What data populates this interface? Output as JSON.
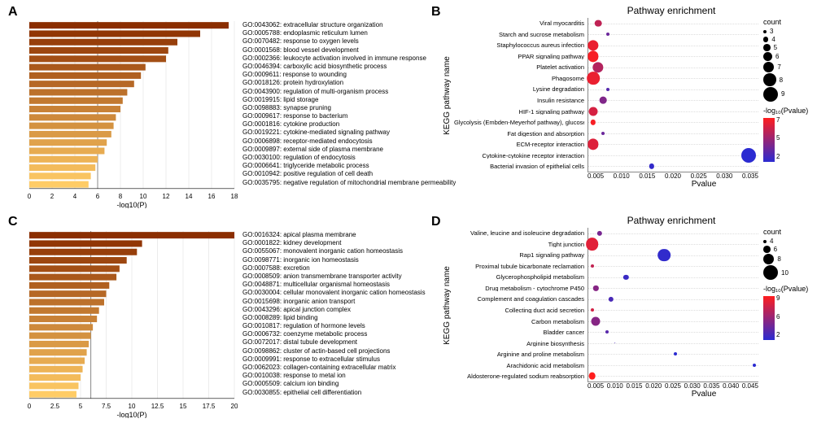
{
  "panelA": {
    "label": "A",
    "xaxis": {
      "label": "-log10(P)",
      "min": 0,
      "max": 18,
      "tick_step": 2
    },
    "bar_colors_gradient": {
      "start": "#8b2e00",
      "end": "#ffcc66"
    },
    "bars": [
      {
        "go": "GO:0043062",
        "term": "extracellular structure organization",
        "value": 17.5
      },
      {
        "go": "GO:0005788",
        "term": "endoplasmic reticulum lumen",
        "value": 15.0
      },
      {
        "go": "GO:0070482",
        "term": "response to oxygen levels",
        "value": 13.0
      },
      {
        "go": "GO:0001568",
        "term": "blood vessel development",
        "value": 12.2
      },
      {
        "go": "GO:0002366",
        "term": "leukocyte activation involved in immune response",
        "value": 12.0
      },
      {
        "go": "GO:0046394",
        "term": "carboxylic acid biosynthetic process",
        "value": 10.2
      },
      {
        "go": "GO:0009611",
        "term": "response to wounding",
        "value": 9.8
      },
      {
        "go": "GO:0018126",
        "term": "protein hydroxylation",
        "value": 9.2
      },
      {
        "go": "GO:0043900",
        "term": "regulation of multi-organism process",
        "value": 8.6
      },
      {
        "go": "GO:0019915",
        "term": "lipid storage",
        "value": 8.2
      },
      {
        "go": "GO:0098883",
        "term": "synapse pruning",
        "value": 8.0
      },
      {
        "go": "GO:0009617",
        "term": "response to bacterium",
        "value": 7.6
      },
      {
        "go": "GO:0001816",
        "term": "cytokine production",
        "value": 7.4
      },
      {
        "go": "GO:0019221",
        "term": "cytokine-mediated signaling pathway",
        "value": 7.2
      },
      {
        "go": "GO:0006898",
        "term": "receptor-mediated endocytosis",
        "value": 6.8
      },
      {
        "go": "GO:0009897",
        "term": "external side of plasma membrane",
        "value": 6.6
      },
      {
        "go": "GO:0030100",
        "term": "regulation of endocytosis",
        "value": 6.0
      },
      {
        "go": "GO:0006641",
        "term": "triglyceride metabolic process",
        "value": 5.8
      },
      {
        "go": "GO:0010942",
        "term": "positive regulation of cell death",
        "value": 5.4
      },
      {
        "go": "GO:0035795",
        "term": "negative regulation of mitochondrial membrane permeability",
        "value": 5.2
      }
    ]
  },
  "panelC": {
    "label": "C",
    "xaxis": {
      "label": "-log10(P)",
      "min": 0,
      "max": 20,
      "tick_step": 2.5
    },
    "bar_colors_gradient": {
      "start": "#8b2e00",
      "end": "#ffcc66"
    },
    "bars": [
      {
        "go": "GO:0016324",
        "term": "apical plasma membrane",
        "value": 20.0
      },
      {
        "go": "GO:0001822",
        "term": "kidney development",
        "value": 11.0
      },
      {
        "go": "GO:0055067",
        "term": "monovalent inorganic cation homeostasis",
        "value": 10.5
      },
      {
        "go": "GO:0098771",
        "term": "inorganic ion homeostasis",
        "value": 9.5
      },
      {
        "go": "GO:0007588",
        "term": "excretion",
        "value": 8.8
      },
      {
        "go": "GO:0008509",
        "term": "anion transmembrane transporter activity",
        "value": 8.5
      },
      {
        "go": "GO:0048871",
        "term": "multicellular organismal homeostasis",
        "value": 7.8
      },
      {
        "go": "GO:0030004",
        "term": "cellular monovalent inorganic cation homeostasis",
        "value": 7.5
      },
      {
        "go": "GO:0015698",
        "term": "inorganic anion transport",
        "value": 7.3
      },
      {
        "go": "GO:0043296",
        "term": "apical junction complex",
        "value": 6.8
      },
      {
        "go": "GO:0008289",
        "term": "lipid binding",
        "value": 6.6
      },
      {
        "go": "GO:0010817",
        "term": "regulation of hormone levels",
        "value": 6.2
      },
      {
        "go": "GO:0006732",
        "term": "coenzyme metabolic process",
        "value": 6.0
      },
      {
        "go": "GO:0072017",
        "term": "distal tubule development",
        "value": 5.8
      },
      {
        "go": "GO:0098862",
        "term": "cluster of actin-based cell projections",
        "value": 5.6
      },
      {
        "go": "GO:0009991",
        "term": "response to extracellular stimulus",
        "value": 5.4
      },
      {
        "go": "GO:0062023",
        "term": "collagen-containing extracellular matrix",
        "value": 5.2
      },
      {
        "go": "GO:0010038",
        "term": "response to metal ion",
        "value": 5.0
      },
      {
        "go": "GO:0005509",
        "term": "calcium ion binding",
        "value": 4.8
      },
      {
        "go": "GO:0030855",
        "term": "epithelial cell differentiation",
        "value": 4.6
      }
    ]
  },
  "panelB": {
    "label": "B",
    "title": "Pathway enrichment",
    "ylab": "KEGG pathway name",
    "xlab": "Pvalue",
    "xaxis": {
      "min": 0,
      "max": 0.035,
      "ticks": [
        "0.005",
        "0.010",
        "0.015",
        "0.020",
        "0.025",
        "0.030",
        "0.035"
      ]
    },
    "color_scale": {
      "label": "-log₁₀(Pvalue)",
      "min": 2,
      "max": 7,
      "low_color": "#2b2bd1",
      "high_color": "#ff1e1e"
    },
    "size_scale": {
      "label": "count",
      "values": [
        3,
        4,
        5,
        6,
        7,
        8,
        9
      ]
    },
    "points": [
      {
        "name": "Viral myocarditis",
        "pvalue": 0.002,
        "count": 5,
        "nlp": 5.5
      },
      {
        "name": "Starch and sucrose metabolism",
        "pvalue": 0.004,
        "count": 3,
        "nlp": 3.5
      },
      {
        "name": "Staphylococcus aureus infection",
        "pvalue": 0.001,
        "count": 7,
        "nlp": 6.5
      },
      {
        "name": "PPAR signaling pathway",
        "pvalue": 0.001,
        "count": 7,
        "nlp": 6.8
      },
      {
        "name": "Platelet activation",
        "pvalue": 0.002,
        "count": 7,
        "nlp": 5.2
      },
      {
        "name": "Phagosome",
        "pvalue": 0.001,
        "count": 8,
        "nlp": 6.5
      },
      {
        "name": "Lysine degradation",
        "pvalue": 0.004,
        "count": 3,
        "nlp": 3.0
      },
      {
        "name": "Insulin resistance",
        "pvalue": 0.003,
        "count": 5,
        "nlp": 4.0
      },
      {
        "name": "HIF-1 signaling pathway",
        "pvalue": 0.001,
        "count": 6,
        "nlp": 6.0
      },
      {
        "name": "Glycolysis (Embden-Meyerhof pathway), glucose => pyruvate",
        "pvalue": 0.001,
        "count": 4,
        "nlp": 6.8
      },
      {
        "name": "Fat digestion and absorption",
        "pvalue": 0.003,
        "count": 3,
        "nlp": 3.5
      },
      {
        "name": "ECM-receptor interaction",
        "pvalue": 0.001,
        "count": 7,
        "nlp": 6.2
      },
      {
        "name": "Cytokine-cytokine receptor interaction",
        "pvalue": 0.033,
        "count": 9,
        "nlp": 2.0
      },
      {
        "name": "Bacterial invasion of epithelial cells",
        "pvalue": 0.013,
        "count": 4,
        "nlp": 2.2
      }
    ]
  },
  "panelD": {
    "label": "D",
    "title": "Pathway enrichment",
    "ylab": "KEGG pathway name",
    "xlab": "Pvalue",
    "xaxis": {
      "min": 0,
      "max": 0.045,
      "ticks": [
        "0.005",
        "0.010",
        "0.015",
        "0.020",
        "0.025",
        "0.030",
        "0.035",
        "0.040",
        "0.045"
      ]
    },
    "color_scale": {
      "label": "-log₁₀(Pvalue)",
      "min": 2,
      "max": 9,
      "low_color": "#2b2bd1",
      "high_color": "#ff1e1e"
    },
    "size_scale": {
      "label": "count",
      "values": [
        4,
        6,
        8,
        10
      ]
    },
    "points": [
      {
        "name": "Valine, leucine and isoleucine degradation",
        "pvalue": 0.003,
        "count": 5,
        "nlp": 4.5
      },
      {
        "name": "Tight junction",
        "pvalue": 0.001,
        "count": 9,
        "nlp": 8.0
      },
      {
        "name": "Rap1 signaling pathway",
        "pvalue": 0.02,
        "count": 9,
        "nlp": 2.2
      },
      {
        "name": "Proximal tubule bicarbonate reclamation",
        "pvalue": 0.001,
        "count": 4,
        "nlp": 7.0
      },
      {
        "name": "Glycerophospholipid metabolism",
        "pvalue": 0.01,
        "count": 5,
        "nlp": 2.5
      },
      {
        "name": "Drug metabolism - cytochrome P450",
        "pvalue": 0.002,
        "count": 5,
        "nlp": 5.0
      },
      {
        "name": "Complement and coagulation cascades",
        "pvalue": 0.006,
        "count": 5,
        "nlp": 3.0
      },
      {
        "name": "Collecting duct acid secretion",
        "pvalue": 0.001,
        "count": 4,
        "nlp": 7.5
      },
      {
        "name": "Carbon metabolism",
        "pvalue": 0.002,
        "count": 7,
        "nlp": 5.0
      },
      {
        "name": "Bladder cancer",
        "pvalue": 0.005,
        "count": 4,
        "nlp": 3.5
      },
      {
        "name": "Arginine biosynthesis",
        "pvalue": 0.007,
        "count": 3,
        "nlp": 3.0
      },
      {
        "name": "Arginine and proline metabolism",
        "pvalue": 0.023,
        "count": 4,
        "nlp": 2.0
      },
      {
        "name": "Arachidonic acid metabolism",
        "pvalue": 0.044,
        "count": 4,
        "nlp": 2.0
      },
      {
        "name": "Aldosterone-regulated sodium reabsorption",
        "pvalue": 0.001,
        "count": 6,
        "nlp": 9.0
      }
    ]
  }
}
